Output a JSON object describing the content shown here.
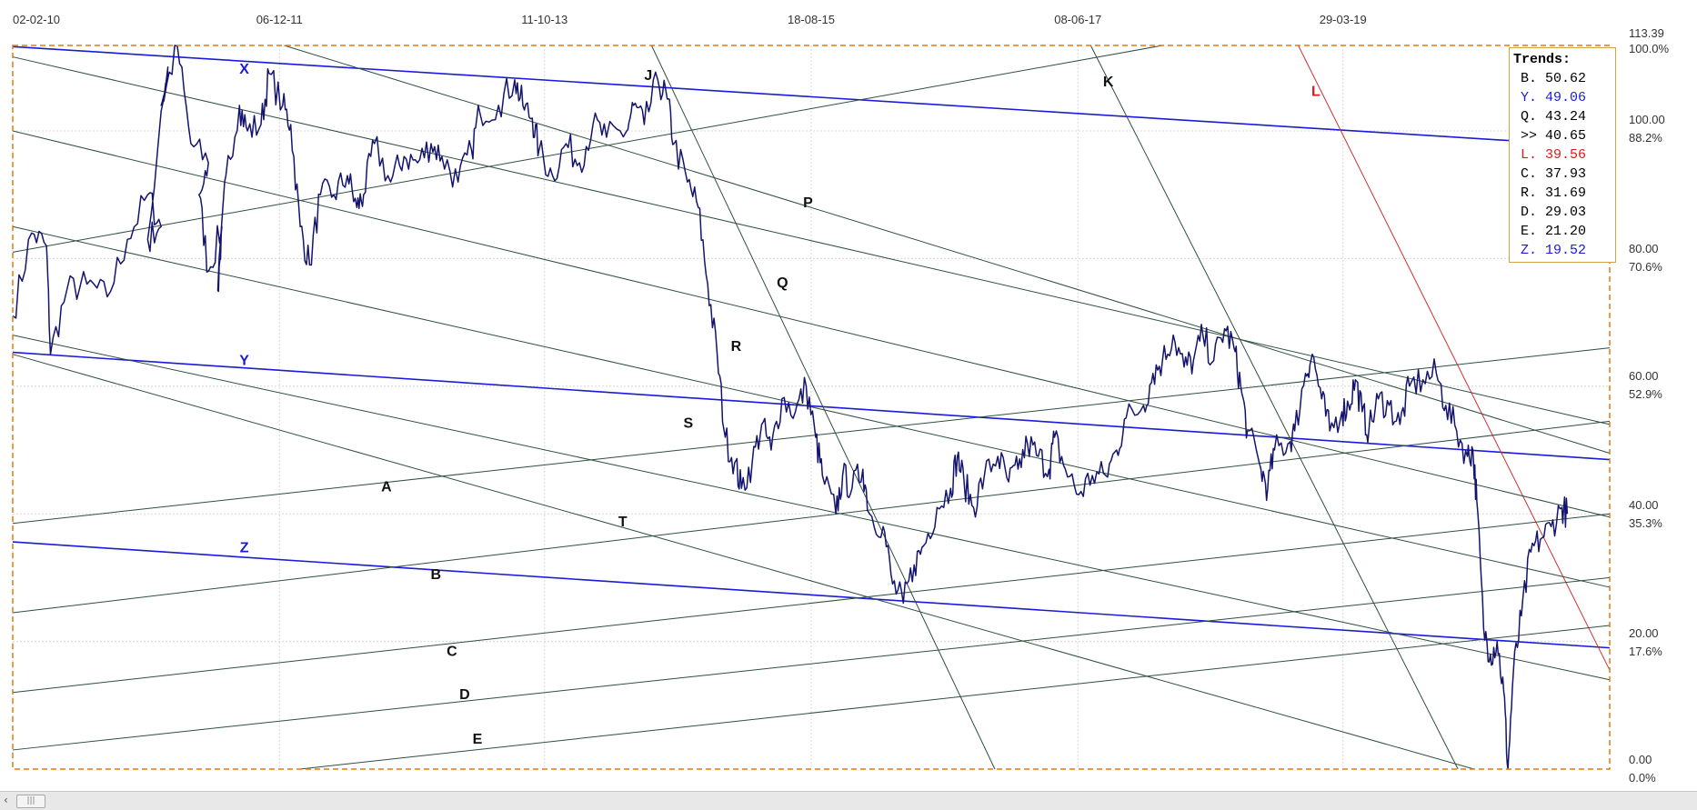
{
  "trends": {
    "title": "Trends:",
    "items": [
      {
        "label": "B.",
        "value": "50.62",
        "color": "#000000"
      },
      {
        "label": "Y.",
        "value": "49.06",
        "color": "#1a1adc"
      },
      {
        "label": "Q.",
        "value": "43.24",
        "color": "#000000"
      },
      {
        "label": ">>",
        "value": "40.65",
        "color": "#000000"
      },
      {
        "label": "L.",
        "value": "39.56",
        "color": "#dc1a1a"
      },
      {
        "label": "C.",
        "value": "37.93",
        "color": "#000000"
      },
      {
        "label": "R.",
        "value": "31.69",
        "color": "#000000"
      },
      {
        "label": "D.",
        "value": "29.03",
        "color": "#000000"
      },
      {
        "label": "E.",
        "value": "21.20",
        "color": "#000000"
      },
      {
        "label": "Z.",
        "value": "19.52",
        "color": "#1a1adc"
      }
    ]
  },
  "chart_data": {
    "type": "line",
    "x_tick_labels": [
      "02-02-10",
      "06-12-11",
      "11-10-13",
      "18-08-15",
      "08-06-17",
      "29-03-19"
    ],
    "y_axis_values": [
      "113.39",
      "100.00",
      "80.00",
      "60.00",
      "40.00",
      "20.00",
      "0.00"
    ],
    "y_axis_percent": [
      "100.0%",
      "88.2%",
      "70.6%",
      "52.9%",
      "35.3%",
      "17.6%",
      "0.0%"
    ],
    "ylim": [
      0,
      113.39
    ],
    "grid": true,
    "legend": "top-right",
    "colors": {
      "price": "#14146e",
      "main_trend": "#1a1adc",
      "minor_trend": "#2f4f3f",
      "red_trend": "#d03030",
      "frame": "#e07a10"
    },
    "trend_lines": [
      {
        "name": "X",
        "color": "#1a1adc",
        "from": [
          0,
          113.2
        ],
        "to": [
          1,
          97.5
        ]
      },
      {
        "name": "Y",
        "color": "#1a1adc",
        "from": [
          0,
          65.3
        ],
        "to": [
          1,
          48.5
        ]
      },
      {
        "name": "Z",
        "color": "#1a1adc",
        "from": [
          0,
          35.6
        ],
        "to": [
          1,
          19.0
        ]
      },
      {
        "name": "J",
        "color": "#2f4f3f",
        "from": [
          0.4,
          113.39
        ],
        "to": [
          0.615,
          0
        ]
      },
      {
        "name": "K",
        "color": "#2f4f3f",
        "from": [
          0.675,
          113.39
        ],
        "to": [
          0.905,
          0
        ]
      },
      {
        "name": "L",
        "color": "#d03030",
        "from": [
          0.805,
          113.39
        ],
        "to": [
          1,
          15.5
        ]
      },
      {
        "name": "P",
        "color": "#2f4f3f",
        "from": [
          0,
          111.6
        ],
        "to": [
          1,
          54.0
        ]
      },
      {
        "name": "Q",
        "color": "#2f4f3f",
        "from": [
          0,
          100.0
        ],
        "to": [
          1,
          39.5
        ]
      },
      {
        "name": "R",
        "color": "#2f4f3f",
        "from": [
          0,
          85.0
        ],
        "to": [
          1,
          28.5
        ]
      },
      {
        "name": "S",
        "color": "#2f4f3f",
        "from": [
          0,
          68.0
        ],
        "to": [
          1,
          14.0
        ]
      },
      {
        "name": "T",
        "color": "#2f4f3f",
        "from": [
          0,
          65.0
        ],
        "to": [
          0.915,
          0
        ]
      },
      {
        "name": "A",
        "color": "#2f4f3f",
        "from": [
          0,
          38.5
        ],
        "to": [
          1,
          66.0
        ]
      },
      {
        "name": "B",
        "color": "#2f4f3f",
        "from": [
          0,
          24.5
        ],
        "to": [
          1,
          54.5
        ]
      },
      {
        "name": "C",
        "color": "#2f4f3f",
        "from": [
          0,
          12.0
        ],
        "to": [
          1,
          40.0
        ]
      },
      {
        "name": "D",
        "color": "#2f4f3f",
        "from": [
          0,
          3.0
        ],
        "to": [
          1,
          30.0
        ]
      },
      {
        "name": "E",
        "color": "#2f4f3f",
        "from": [
          0.18,
          0
        ],
        "to": [
          1,
          22.5
        ]
      },
      {
        "name": "",
        "color": "#2f4f3f",
        "from": [
          0,
          81.0
        ],
        "to": [
          0.72,
          113.39
        ]
      },
      {
        "name": "",
        "color": "#2f4f3f",
        "from": [
          0.17,
          113.39
        ],
        "to": [
          1,
          49.5
        ]
      }
    ],
    "line_labels": [
      {
        "text": "X",
        "t": 0.145,
        "v": 109.0,
        "color": "#1a1adc"
      },
      {
        "text": "Y",
        "t": 0.145,
        "v": 63.3,
        "color": "#1a1adc"
      },
      {
        "text": "Z",
        "t": 0.145,
        "v": 34.0,
        "color": "#1a1adc"
      },
      {
        "text": "J",
        "t": 0.398,
        "v": 108.0,
        "color": "#111111"
      },
      {
        "text": "K",
        "t": 0.686,
        "v": 107.0,
        "color": "#111111"
      },
      {
        "text": "L",
        "t": 0.816,
        "v": 105.5,
        "color": "#dc1a1a"
      },
      {
        "text": "P",
        "t": 0.498,
        "v": 88.0,
        "color": "#111111"
      },
      {
        "text": "Q",
        "t": 0.482,
        "v": 75.5,
        "color": "#111111"
      },
      {
        "text": "R",
        "t": 0.453,
        "v": 65.5,
        "color": "#111111"
      },
      {
        "text": "S",
        "t": 0.423,
        "v": 53.5,
        "color": "#111111"
      },
      {
        "text": "T",
        "t": 0.382,
        "v": 38.0,
        "color": "#111111"
      },
      {
        "text": "A",
        "t": 0.234,
        "v": 43.5,
        "color": "#111111"
      },
      {
        "text": "B",
        "t": 0.265,
        "v": 29.8,
        "color": "#111111"
      },
      {
        "text": "C",
        "t": 0.275,
        "v": 17.7,
        "color": "#111111"
      },
      {
        "text": "D",
        "t": 0.283,
        "v": 11.0,
        "color": "#111111"
      },
      {
        "text": "E",
        "t": 0.291,
        "v": 4.0,
        "color": "#111111"
      }
    ],
    "price_series": {
      "name": "",
      "keypoints": [
        [
          0.0,
          71
        ],
        [
          0.014,
          84
        ],
        [
          0.025,
          82
        ],
        [
          0.028,
          65
        ],
        [
          0.04,
          75
        ],
        [
          0.055,
          76
        ],
        [
          0.07,
          74
        ],
        [
          0.085,
          83
        ],
        [
          0.1,
          90
        ],
        [
          0.11,
          85
        ],
        [
          0.1,
          83
        ],
        [
          0.115,
          110
        ],
        [
          0.11,
          104
        ],
        [
          0.122,
          113.3
        ],
        [
          0.132,
          98
        ],
        [
          0.145,
          95
        ],
        [
          0.138,
          90
        ],
        [
          0.145,
          78
        ],
        [
          0.155,
          85
        ],
        [
          0.152,
          75
        ],
        [
          0.158,
          93
        ],
        [
          0.168,
          104
        ],
        [
          0.174,
          100
        ],
        [
          0.184,
          101
        ],
        [
          0.19,
          109
        ],
        [
          0.2,
          104
        ],
        [
          0.206,
          101
        ],
        [
          0.213,
          85
        ],
        [
          0.22,
          79
        ],
        [
          0.228,
          90
        ],
        [
          0.238,
          90
        ],
        [
          0.248,
          93
        ],
        [
          0.255,
          88
        ],
        [
          0.26,
          90
        ],
        [
          0.268,
          98
        ],
        [
          0.28,
          92
        ],
        [
          0.29,
          96
        ],
        [
          0.3,
          95
        ],
        [
          0.31,
          98
        ],
        [
          0.318,
          96
        ],
        [
          0.33,
          92
        ],
        [
          0.34,
          97
        ],
        [
          0.346,
          103
        ],
        [
          0.36,
          104
        ],
        [
          0.372,
          108
        ],
        [
          0.378,
          104
        ],
        [
          0.385,
          102
        ],
        [
          0.39,
          97
        ],
        [
          0.4,
          93
        ],
        [
          0.41,
          98
        ],
        [
          0.42,
          95
        ],
        [
          0.43,
          101
        ],
        [
          0.44,
          99
        ],
        [
          0.455,
          100
        ],
        [
          0.46,
          104
        ],
        [
          0.468,
          101
        ],
        [
          0.478,
          108
        ],
        [
          0.485,
          105
        ],
        [
          0.49,
          98
        ],
        [
          0.5,
          92
        ],
        [
          0.508,
          88
        ],
        [
          0.515,
          76
        ],
        [
          0.522,
          65
        ],
        [
          0.528,
          52
        ],
        [
          0.535,
          48
        ],
        [
          0.54,
          44
        ],
        [
          0.548,
          48
        ],
        [
          0.555,
          54
        ],
        [
          0.562,
          50
        ],
        [
          0.57,
          58
        ],
        [
          0.58,
          56
        ],
        [
          0.588,
          60
        ],
        [
          0.595,
          52
        ],
        [
          0.6,
          46
        ],
        [
          0.61,
          40
        ],
        [
          0.615,
          46
        ],
        [
          0.622,
          44
        ],
        [
          0.63,
          47
        ],
        [
          0.635,
          40
        ],
        [
          0.645,
          38
        ],
        [
          0.652,
          29
        ],
        [
          0.66,
          26
        ],
        [
          0.668,
          32
        ],
        [
          0.675,
          35
        ],
        [
          0.685,
          41
        ],
        [
          0.695,
          44
        ],
        [
          0.7,
          49
        ],
        [
          0.705,
          45
        ],
        [
          0.712,
          41
        ],
        [
          0.72,
          46
        ],
        [
          0.73,
          49
        ],
        [
          0.738,
          45
        ],
        [
          0.745,
          47
        ],
        [
          0.752,
          51
        ],
        [
          0.76,
          49
        ],
        [
          0.768,
          47
        ],
        [
          0.772,
          52
        ],
        [
          0.78,
          47
        ],
        [
          0.79,
          43
        ],
        [
          0.8,
          46
        ],
        [
          0.81,
          46
        ],
        [
          0.818,
          50
        ],
        [
          0.825,
          55
        ],
        [
          0.838,
          57
        ],
        [
          0.845,
          62
        ],
        [
          0.852,
          64
        ],
        [
          0.86,
          68
        ],
        [
          0.868,
          63
        ],
        [
          0.875,
          64
        ],
        [
          0.882,
          68
        ],
        [
          0.89,
          64
        ],
        [
          0.898,
          69
        ],
        [
          0.905,
          66
        ],
        [
          0.91,
          60
        ],
        [
          0.915,
          53
        ],
        [
          0.925,
          47
        ],
        [
          0.93,
          44
        ],
        [
          0.935,
          50
        ],
        [
          0.945,
          51
        ],
        [
          0.95,
          53
        ],
        [
          0.958,
          62
        ],
        [
          0.963,
          65
        ],
        [
          0.97,
          58
        ],
        [
          0.976,
          53
        ],
        [
          0.985,
          56
        ],
        [
          0.99,
          57
        ],
        [
          0.995,
          61
        ],
        [
          1.0,
          56
        ],
        [
          1.005,
          53
        ],
        [
          1.012,
          58
        ],
        [
          1.02,
          57
        ],
        [
          1.028,
          54
        ],
        [
          1.035,
          60
        ],
        [
          1.045,
          61
        ],
        [
          1.055,
          62
        ],
        [
          1.062,
          57
        ],
        [
          1.07,
          53
        ],
        [
          1.078,
          49
        ],
        [
          1.082,
          50
        ],
        [
          1.085,
          42
        ],
        [
          1.09,
          22
        ],
        [
          1.095,
          18
        ],
        [
          1.1,
          20
        ],
        [
          1.105,
          12
        ],
        [
          1.108,
          0
        ],
        [
          1.112,
          15
        ],
        [
          1.118,
          24
        ],
        [
          1.125,
          34
        ],
        [
          1.132,
          36
        ],
        [
          1.14,
          38
        ],
        [
          1.148,
          41
        ],
        [
          1.152,
          40
        ]
      ]
    }
  }
}
